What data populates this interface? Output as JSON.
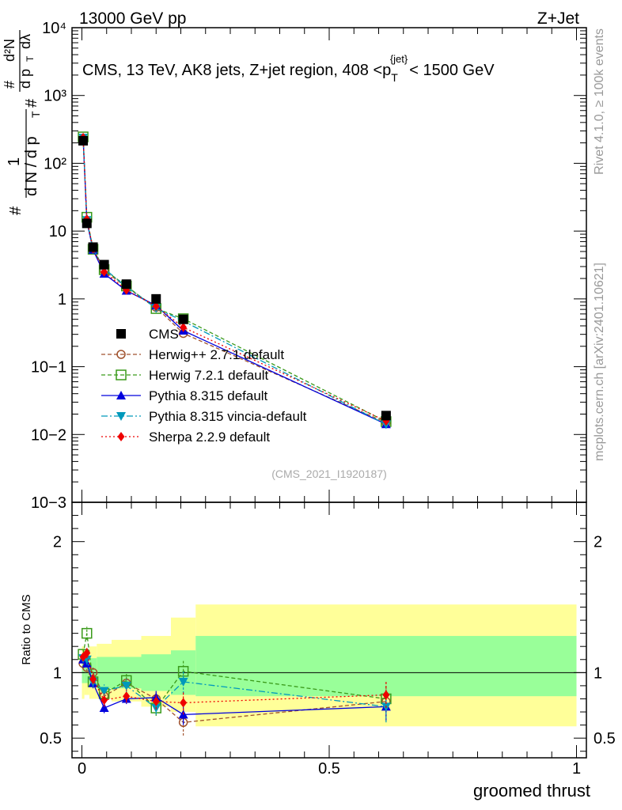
{
  "header": {
    "left": "13000 GeV pp",
    "right": "Z+Jet"
  },
  "side_text": {
    "rivet": "Rivet 4.1.0, ≥ 100k events",
    "url": "mcplots.cern.ch [arXiv:2401.10621]"
  },
  "chart_data": {
    "type": "line",
    "title": "CMS, 13 TeV, AK8 jets, Z+jet region, 408 <p_T^{jet}< 1500 GeV",
    "title_parts": {
      "main": "CMS, 13 TeV, AK8 jets, Z+jet region, 408 <p",
      "sub": "T",
      "sup": "{jet}",
      "end": "< 1500 GeV"
    },
    "ylabel_parts": {
      "hash1": "#",
      "one": "1",
      "dn": "d N / d p",
      "t": "T",
      "hash2": "#",
      "d2n": "d²N",
      "dptdl": "d p",
      "t2": "T",
      "dl": "dλ"
    },
    "xlabel": "groomed thrust",
    "ratio_ylabel": "Ratio to CMS",
    "watermark": "(CMS_2021_I1920187)",
    "xlim": [
      -0.02,
      1.02
    ],
    "ylim": [
      0.001,
      10000
    ],
    "yscale": "log",
    "ratio_ylim": [
      0.35,
      2.3
    ],
    "x_ticks": [
      "0",
      "0.5",
      "1"
    ],
    "y_ticks": [
      "10−3",
      "10−2",
      "10−1",
      "1",
      "10",
      "10²",
      "10³",
      "10⁴"
    ],
    "ratio_ticks": [
      "0.5",
      "1",
      "2"
    ],
    "bins": [
      [
        0.0,
        0.005
      ],
      [
        0.005,
        0.015
      ],
      [
        0.015,
        0.03
      ],
      [
        0.03,
        0.06
      ],
      [
        0.06,
        0.12
      ],
      [
        0.12,
        0.18
      ],
      [
        0.18,
        0.23
      ],
      [
        0.23,
        1.0
      ]
    ],
    "x": [
      0.0025,
      0.01,
      0.0225,
      0.045,
      0.09,
      0.15,
      0.205,
      0.615
    ],
    "data": {
      "name": "CMS",
      "values": [
        215,
        13,
        5.8,
        3.2,
        1.65,
        1.0,
        0.5,
        0.019
      ],
      "band_stat": [
        [
          0.92,
          1.08
        ],
        [
          0.92,
          1.08
        ],
        [
          0.89,
          1.11
        ],
        [
          0.88,
          1.12
        ],
        [
          0.88,
          1.12
        ],
        [
          0.86,
          1.14
        ],
        [
          0.83,
          1.17
        ],
        [
          0.82,
          1.28
        ]
      ],
      "band_total": [
        [
          0.8,
          1.2
        ],
        [
          0.83,
          1.17
        ],
        [
          0.8,
          1.2
        ],
        [
          0.8,
          1.22
        ],
        [
          0.78,
          1.25
        ],
        [
          0.74,
          1.28
        ],
        [
          0.7,
          1.42
        ],
        [
          0.59,
          1.52
        ]
      ]
    },
    "series": [
      {
        "name": "Herwig++ 2.7.1 default",
        "color": "#a0522d",
        "marker": "circle-open",
        "dash": "5,3",
        "values": [
          230,
          13.5,
          5.8,
          2.6,
          1.5,
          0.75,
          0.31,
          0.015
        ],
        "ratio": [
          1.07,
          1.04,
          1.0,
          0.82,
          0.92,
          0.8,
          0.62,
          0.78
        ],
        "ratio_err": [
          0.03,
          0.03,
          0.04,
          0.05,
          0.04,
          0.06,
          0.1,
          0.12
        ]
      },
      {
        "name": "Herwig 7.2.1 default",
        "color": "#3a9a1a",
        "marker": "square-open",
        "dash": "5,3",
        "values": [
          245,
          16,
          5.4,
          2.7,
          1.55,
          0.72,
          0.51,
          0.0155
        ],
        "ratio": [
          1.14,
          1.3,
          0.93,
          0.84,
          0.94,
          0.73,
          1.01,
          0.8
        ],
        "ratio_err": [
          0.04,
          0.05,
          0.04,
          0.05,
          0.05,
          0.06,
          0.09,
          0.1
        ]
      },
      {
        "name": "Pythia 8.315 default",
        "color": "#0000dd",
        "marker": "triangle-up",
        "dash": "",
        "values": [
          235,
          13.8,
          5.3,
          2.35,
          1.32,
          0.8,
          0.34,
          0.0142
        ],
        "ratio": [
          1.1,
          1.07,
          0.92,
          0.73,
          0.8,
          0.81,
          0.68,
          0.74
        ],
        "ratio_err": [
          0.03,
          0.03,
          0.04,
          0.04,
          0.04,
          0.05,
          0.08,
          0.11
        ]
      },
      {
        "name": "Pythia 8.315 vincia-default",
        "color": "#0099bb",
        "marker": "triangle-down",
        "dash": "8,3,2,3",
        "values": [
          238,
          14.5,
          5.4,
          2.8,
          1.5,
          0.73,
          0.47,
          0.0141
        ],
        "ratio": [
          1.11,
          1.1,
          0.93,
          0.86,
          0.9,
          0.73,
          0.93,
          0.74
        ],
        "ratio_err": [
          0.03,
          0.04,
          0.04,
          0.05,
          0.05,
          0.05,
          0.09,
          0.12
        ]
      },
      {
        "name": "Sherpa 2.2.9 default",
        "color": "#ee0000",
        "marker": "diamond",
        "dash": "2,3",
        "values": [
          240,
          15,
          5.5,
          2.5,
          1.35,
          0.78,
          0.38,
          0.0158
        ],
        "ratio": [
          1.12,
          1.15,
          0.95,
          0.79,
          0.82,
          0.78,
          0.77,
          0.83
        ],
        "ratio_err": [
          0.03,
          0.04,
          0.04,
          0.05,
          0.05,
          0.06,
          0.09,
          0.1
        ]
      }
    ]
  }
}
